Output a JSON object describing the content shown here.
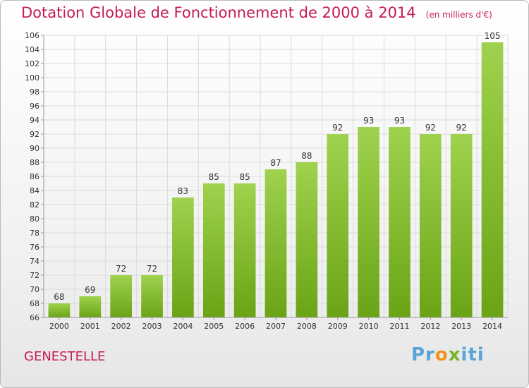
{
  "chart_data": {
    "type": "bar",
    "title": "Dotation Globale de Fonctionnement de 2000 à 2014",
    "unit_note": "(en milliers d'€)",
    "categories": [
      "2000",
      "2001",
      "2002",
      "2003",
      "2004",
      "2005",
      "2006",
      "2007",
      "2008",
      "2009",
      "2010",
      "2011",
      "2012",
      "2013",
      "2014"
    ],
    "values": [
      68,
      69,
      72,
      72,
      83,
      85,
      85,
      87,
      88,
      92,
      93,
      93,
      92,
      92,
      105
    ],
    "ylim": [
      66,
      106
    ],
    "yticks": [
      66,
      68,
      70,
      72,
      74,
      76,
      78,
      80,
      82,
      84,
      86,
      88,
      90,
      92,
      94,
      96,
      98,
      100,
      102,
      104,
      106
    ],
    "grid": true,
    "bar_color": "#8cc63f",
    "title_color": "#c51a52"
  },
  "place": "GENESTELLE",
  "logo": {
    "parts": [
      "Pr",
      "o",
      "x",
      "i",
      "ti"
    ]
  }
}
